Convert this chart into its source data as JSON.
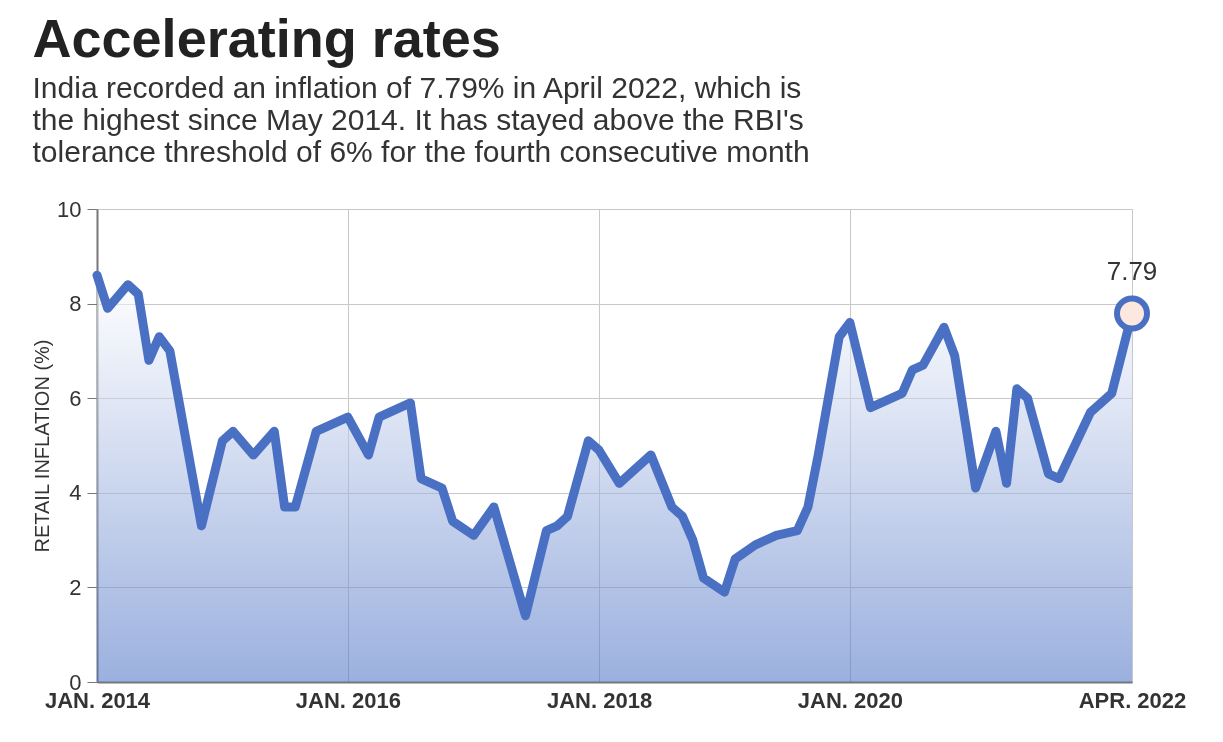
{
  "chart_data": {
    "type": "area",
    "title": "Accelerating rates",
    "subtitle": "India recorded an inflation of 7.79% in April 2022, which is the highest since May 2014. It has stayed above the RBI's tolerance threshold of 6% for the fourth consecutive month",
    "ylabel": "RETAIL INFLATION (%)",
    "x": [
      "2014-01",
      "2014-02",
      "2014-04",
      "2014-05",
      "2014-06",
      "2014-07",
      "2014-08",
      "2014-11",
      "2015-01",
      "2015-02",
      "2015-04",
      "2015-06",
      "2015-07",
      "2015-08",
      "2015-10",
      "2016-01",
      "2016-03",
      "2016-04",
      "2016-05",
      "2016-07",
      "2016-08",
      "2016-10",
      "2016-11",
      "2017-01",
      "2017-03",
      "2017-06",
      "2017-08",
      "2017-09",
      "2017-10",
      "2017-12",
      "2018-01",
      "2018-03",
      "2018-06",
      "2018-08",
      "2018-09",
      "2018-10",
      "2018-11",
      "2019-01",
      "2019-02",
      "2019-04",
      "2019-06",
      "2019-08",
      "2019-09",
      "2019-10",
      "2019-12",
      "2020-01",
      "2020-03",
      "2020-06",
      "2020-07",
      "2020-08",
      "2020-10",
      "2020-11",
      "2021-01",
      "2021-03",
      "2021-04",
      "2021-05",
      "2021-06",
      "2021-08",
      "2021-09",
      "2021-12",
      "2022-02",
      "2022-04"
    ],
    "series": [
      {
        "color": "#4a70c4",
        "values": [
          8.6,
          7.9,
          8.4,
          8.2,
          6.8,
          7.3,
          7.0,
          3.3,
          5.1,
          5.3,
          4.8,
          5.3,
          3.7,
          3.7,
          5.3,
          5.6,
          4.8,
          5.6,
          5.7,
          5.9,
          4.3,
          4.1,
          3.4,
          3.1,
          3.7,
          1.4,
          3.2,
          3.3,
          3.5,
          5.1,
          4.9,
          4.2,
          4.8,
          3.7,
          3.5,
          3.0,
          2.2,
          1.9,
          2.6,
          2.9,
          3.1,
          3.2,
          3.7,
          4.8,
          7.3,
          7.6,
          5.8,
          6.1,
          6.6,
          6.7,
          7.5,
          6.9,
          4.1,
          5.3,
          4.2,
          6.2,
          6.0,
          4.4,
          4.3,
          5.7,
          6.1,
          7.79
        ]
      }
    ],
    "xlim": [
      "2014-01",
      "2022-04"
    ],
    "xticks": [
      {
        "value": "2014-01",
        "label": "JAN. 2014"
      },
      {
        "value": "2016-01",
        "label": "JAN. 2016"
      },
      {
        "value": "2018-01",
        "label": "JAN. 2018"
      },
      {
        "value": "2020-01",
        "label": "JAN. 2020"
      },
      {
        "value": "2022-04",
        "label": "APR. 2022"
      }
    ],
    "ylim": [
      0,
      10
    ],
    "yticks": [
      0,
      2,
      4,
      6,
      8,
      10
    ],
    "grid": true,
    "annotations": [
      {
        "text": "7.79",
        "x": "2022-04",
        "y": 7.79
      }
    ]
  }
}
